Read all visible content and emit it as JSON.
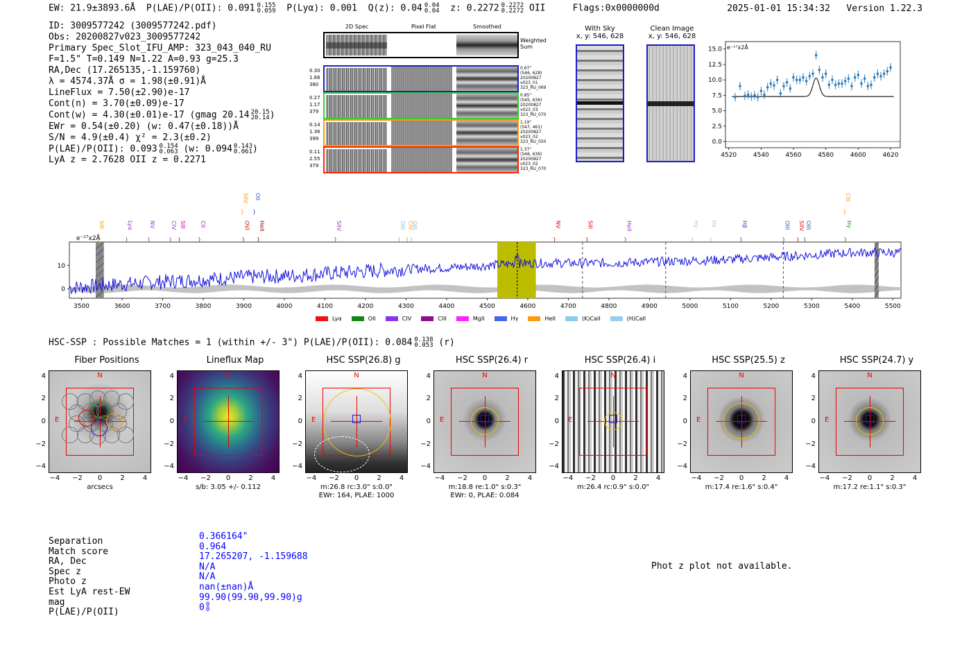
{
  "header": {
    "ew": "EW: 21.9±3893.6Å",
    "plae": "P(LAE)/P(OII): 0.091",
    "plae_hi": "0.155",
    "plae_lo": "0.059",
    "plya": "P(Lyα): 0.001",
    "qz": "Q(z): 0.04",
    "qz_hi": "0.04",
    "qz_lo": "0.04",
    "z": "z: 0.2272",
    "z_hi": "0.2272",
    "z_lo": "0.2272",
    "z_line": "OII",
    "flags": "Flags:0x0000000d",
    "timestamp": "2025-01-01 15:34:32",
    "version": "Version 1.22.3"
  },
  "info": {
    "lines": [
      "ID: 3009577242 (3009577242.pdf)",
      "Obs: 20200827v023_3009577242",
      "Primary Spec_Slot_IFU_AMP: 323_043_040_RU",
      "F=1.5\"  T=0.149  N=1.22  A=0.93  g=25.3",
      "RA,Dec (17.265135,-1.159760)",
      "λ = 4574.37Å  σ = 1.98(±0.91)Å",
      "LineFlux = 7.50(±2.90)e-17",
      "Cont(n) = 3.70(±0.09)e-17",
      "Cont(w) = 4.30(±0.01)e-17 (gmag 20.14",
      "EWr = 0.54(±0.20) (w: 0.47(±0.18))Å",
      "S/N = 4.9(±0.4)  χ² = 2.3(±0.2)",
      "P(LAE)/P(OII): 0.093",
      "LyA z = 2.7628  OII z = 0.2271"
    ],
    "gmag_hi": "20.15",
    "gmag_lo": "20.14",
    "plae2_hi": "0.154",
    "plae2_lo": "0.063",
    "plae2_w": "(w: 0.094",
    "plae2_w_hi": "0.143",
    "plae2_w_lo": "0.061"
  },
  "spec2d": {
    "col_titles": [
      "2D Spec",
      "Pixel Flat",
      "Smoothed"
    ],
    "sum_label": "Weighted\nSum",
    "rows": [
      {
        "left": [
          "0.30",
          "1.66",
          "380"
        ],
        "right": [
          "0.67\"",
          "(546, 628)",
          "20200827",
          "v023_01",
          "323_RU_069"
        ],
        "color": "#1f1fbf"
      },
      {
        "left": [
          "0.27",
          "1.17",
          "379"
        ],
        "right": [
          "0.85\"",
          "(545, 636)",
          "20200827",
          "v023_03",
          "323_RU_070"
        ],
        "color": "#33cc33"
      },
      {
        "left": [
          "0.14",
          "1.36",
          "399"
        ],
        "right": [
          "1.19\"",
          "(547, 461)",
          "20200827",
          "v023_02",
          "323_RU_050"
        ],
        "color": "#ff9900"
      },
      {
        "left": [
          "0.11",
          "2.55",
          "379"
        ],
        "right": [
          "1.37\"",
          "(546, 636)",
          "20200827",
          "v023_02",
          "323_RU_070"
        ],
        "color": "#ff2200"
      }
    ]
  },
  "sky_panels": [
    {
      "title": "With Sky",
      "coords": "x, y: 546, 628"
    },
    {
      "title": "Clean Image",
      "coords": "x, y: 546, 628"
    }
  ],
  "zoom_plot": {
    "unit_label": "e⁻¹⁷x2Å",
    "xticks": [
      "4520",
      "4540",
      "4560",
      "4580",
      "4600",
      "4620"
    ],
    "yticks": [
      "0.0",
      "2.5",
      "5.0",
      "7.5",
      "10.0",
      "12.5",
      "15.0"
    ]
  },
  "chart_data": {
    "type": "line",
    "title": "",
    "ylabel": "e⁻¹⁷x2Å",
    "xlim": [
      3470,
      5520
    ],
    "ylim": [
      -4,
      20
    ],
    "xticks": [
      3500,
      3600,
      3700,
      3800,
      3900,
      4000,
      4100,
      4200,
      4300,
      4400,
      4500,
      4600,
      4700,
      4800,
      4900,
      5000,
      5100,
      5200,
      5300,
      5400,
      5500
    ],
    "yticks": [
      0,
      10
    ],
    "highlight_band": [
      4525,
      4620
    ],
    "highlight_line": 4574,
    "dashed_lines": [
      4735,
      4940,
      5230
    ],
    "hatched_bands": [
      [
        3535,
        3555
      ],
      [
        5455,
        5465
      ]
    ],
    "continuum": [
      [
        3470,
        0.5
      ],
      [
        3600,
        2
      ],
      [
        3700,
        3
      ],
      [
        3800,
        4
      ],
      [
        3900,
        5
      ],
      [
        4000,
        5.5
      ],
      [
        4100,
        6.5
      ],
      [
        4200,
        7.5
      ],
      [
        4300,
        8.5
      ],
      [
        4400,
        9
      ],
      [
        4500,
        10
      ],
      [
        4600,
        11
      ],
      [
        4700,
        11
      ],
      [
        4800,
        11
      ],
      [
        4900,
        11.5
      ],
      [
        5000,
        12
      ],
      [
        5100,
        12.5
      ],
      [
        5200,
        13.5
      ],
      [
        5300,
        14.5
      ],
      [
        5400,
        15.5
      ],
      [
        5500,
        15.5
      ]
    ],
    "line_markers": [
      {
        "label": "SIII",
        "x": 3540,
        "color": "#ff9900",
        "row": "low"
      },
      {
        "label": "Lyα",
        "x": 3610,
        "color": "#9933cc",
        "row": "low"
      },
      {
        "label": "NV",
        "x": 3665,
        "color": "#9933cc",
        "row": "low"
      },
      {
        "label": "CIV",
        "x": 3718,
        "color": "#9933cc",
        "row": "low"
      },
      {
        "label": "SIII",
        "x": 3740,
        "color": "#cc0099",
        "row": "low"
      },
      {
        "label": "CII",
        "x": 3790,
        "color": "#cc00cc",
        "row": "low"
      },
      {
        "label": "SIIV",
        "x": 3895,
        "color": "#ff9900",
        "row": "high"
      },
      {
        "label": "OII",
        "x": 3925,
        "color": "#3355cc",
        "row": "high"
      },
      {
        "label": "OVI",
        "x": 3898,
        "color": "#dd0000",
        "row": "low"
      },
      {
        "label": "HeII",
        "x": 3935,
        "color": "#990000",
        "row": "low"
      },
      {
        "label": "SIIV",
        "x": 4125,
        "color": "#9933cc",
        "row": "low"
      },
      {
        "label": "OIII",
        "x": 4282,
        "color": "#66ccee",
        "row": "low"
      },
      {
        "label": "CIV",
        "x": 4302,
        "color": "#ff9900",
        "row": "low"
      },
      {
        "label": "OIII",
        "x": 4312,
        "color": "#66ccee",
        "row": "low"
      },
      {
        "label": "NV",
        "x": 4665,
        "color": "#dd0000",
        "row": "low"
      },
      {
        "label": "SIII",
        "x": 4745,
        "color": "#dd0000",
        "row": "low"
      },
      {
        "label": "HeII",
        "x": 4840,
        "color": "#9933cc",
        "row": "low"
      },
      {
        "label": "Hγ",
        "x": 5005,
        "color": "#99ccee",
        "row": "low"
      },
      {
        "label": "Hε",
        "x": 5050,
        "color": "#99ccee",
        "row": "low"
      },
      {
        "label": "Hβ",
        "x": 5125,
        "color": "#3355cc",
        "row": "low"
      },
      {
        "label": "OIII",
        "x": 5230,
        "color": "#3355cc",
        "row": "low"
      },
      {
        "label": "SIIV",
        "x": 5265,
        "color": "#dd0000",
        "row": "low"
      },
      {
        "label": "OIII",
        "x": 5282,
        "color": "#3355cc",
        "row": "low"
      },
      {
        "label": "CIII",
        "x": 5380,
        "color": "#ff9900",
        "row": "high"
      },
      {
        "label": "Hγ",
        "x": 5382,
        "color": "#009900",
        "row": "low"
      }
    ],
    "legend": [
      {
        "name": "Lyα",
        "color": "#ee1111"
      },
      {
        "name": "OII",
        "color": "#118811"
      },
      {
        "name": "CIV",
        "color": "#8833ee"
      },
      {
        "name": "CIII",
        "color": "#881188"
      },
      {
        "name": "MgII",
        "color": "#ff22ff"
      },
      {
        "name": "Hγ",
        "color": "#4466ee"
      },
      {
        "name": "HeII",
        "color": "#ff9911"
      },
      {
        "name": "(K)CaII",
        "color": "#88ccee"
      },
      {
        "name": "(H)CaII",
        "color": "#99ccee"
      }
    ],
    "zoom_series": {
      "x": [
        4524,
        4527,
        4530,
        4532,
        4534,
        4536,
        4538,
        4540,
        4542,
        4544,
        4546,
        4548,
        4550,
        4552,
        4554,
        4556,
        4558,
        4560,
        4562,
        4564,
        4566,
        4568,
        4570,
        4572,
        4574,
        4576,
        4578,
        4580,
        4582,
        4584,
        4586,
        4588,
        4590,
        4592,
        4594,
        4596,
        4598,
        4600,
        4602,
        4604,
        4606,
        4608,
        4610,
        4612,
        4614,
        4616,
        4618,
        4620
      ],
      "y": [
        7.2,
        9.0,
        7.4,
        7.6,
        7.3,
        7.5,
        7.2,
        8.2,
        7.6,
        8.8,
        9.4,
        9.1,
        10.0,
        7.8,
        9.0,
        9.6,
        8.6,
        10.4,
        10.0,
        10.0,
        10.4,
        9.8,
        10.6,
        11.0,
        14.0,
        11.6,
        10.4,
        11.0,
        9.2,
        10.0,
        9.2,
        9.4,
        9.4,
        9.8,
        10.2,
        9.0,
        10.4,
        10.8,
        9.4,
        10.2,
        9.0,
        9.2,
        10.4,
        11.0,
        10.6,
        11.0,
        11.4,
        12.0
      ],
      "model_center": 4574,
      "model_sigma": 2.0,
      "model_peak": 3.0,
      "model_base": 7.3
    }
  },
  "hsc": {
    "summary": "HSC-SSP : Possible Matches = 1 (within +/- 3\")  P(LAE)/P(OII): 0.084",
    "summary_hi": "0.138",
    "summary_lo": "0.053",
    "summary_band": "(r)",
    "stamps": [
      {
        "title": "Fiber Positions",
        "cap1": "arcsecs",
        "cap2": ""
      },
      {
        "title": "Lineflux Map",
        "cap1": "s/b: 3.05 +/- 0.112",
        "cap2": ""
      },
      {
        "title": "HSC SSP(26.8) g",
        "cap1": "m:26.8 rc:3.0\"  s:0.0\"",
        "cap2": "EWr: 164, PLAE: 1000"
      },
      {
        "title": "HSC SSP(26.4) r",
        "cap1": "m:18.8  re:1.0\"  s:0.3\"",
        "cap2": "EWr: 0, PLAE: 0.084"
      },
      {
        "title": "HSC SSP(26.4) i",
        "cap1": "m:26.4 rc:0.9\"  s:0.0\"",
        "cap2": ""
      },
      {
        "title": "HSC SSP(25.5) z",
        "cap1": "m:17.4  re:1.6\"  s:0.4\"",
        "cap2": ""
      },
      {
        "title": "HSC SSP(24.7) y",
        "cap1": "m:17.2  re:1.1\"  s:0.3\"",
        "cap2": ""
      }
    ],
    "stamp_ticks": [
      "−4",
      "−2",
      "0",
      "2",
      "4"
    ],
    "stamp_yticks": [
      "4",
      "2",
      "0",
      "−2",
      "−4"
    ],
    "north": "N",
    "east": "E"
  },
  "match": {
    "labels": [
      "Separation",
      "Match score",
      "RA, Dec",
      "Spec z",
      "Photo z",
      "Est LyA rest-EW",
      "mag",
      "P(LAE)/P(OII)"
    ],
    "values": [
      "0.366164\"",
      "0.964",
      "17.265207, -1.159688",
      "N/A",
      "N/A",
      "nan(±nan)Å",
      "99.90(99.90,99.90)g",
      "0"
    ],
    "plae_hi": "0",
    "plae_lo": "0"
  },
  "photz_note": "Phot z plot not available."
}
